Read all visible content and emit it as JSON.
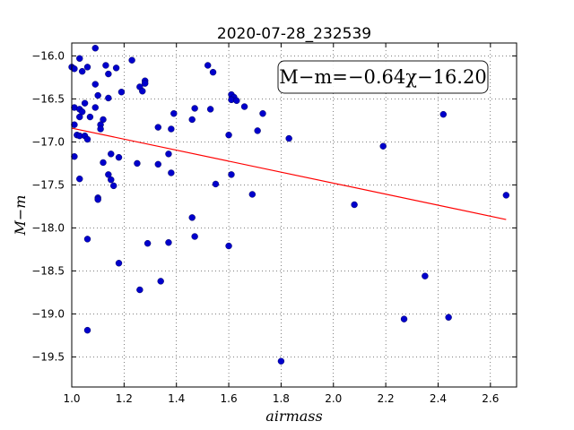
{
  "chart_data": {
    "type": "scatter",
    "title": "2020-07-28_232539",
    "xlabel": "airmass",
    "ylabel": "M−m",
    "xlim": [
      1.0,
      2.7
    ],
    "ylim": [
      -15.85,
      -19.85
    ],
    "y_inverted": true,
    "grid": true,
    "grid_style": "dotted",
    "xticks": [
      1.0,
      1.2,
      1.4,
      1.6,
      1.8,
      2.0,
      2.2,
      2.4,
      2.6
    ],
    "xtick_labels": [
      "1.0",
      "1.2",
      "1.4",
      "1.6",
      "1.8",
      "2.0",
      "2.2",
      "2.4",
      "2.6"
    ],
    "yticks": [
      -16.0,
      -16.5,
      -17.0,
      -17.5,
      -18.0,
      -18.5,
      -19.0,
      -19.5
    ],
    "ytick_labels": [
      "−16.0",
      "−16.5",
      "−17.0",
      "−17.5",
      "−18.0",
      "−18.5",
      "−19.0",
      "−19.5"
    ],
    "annotation": "M−m=−0.64χ−16.20",
    "annotation_placement": "top-right",
    "fit": {
      "slope": -0.64,
      "intercept": -16.2,
      "x_range": [
        1.0,
        2.66
      ],
      "color": "#ff0000"
    },
    "point_color": "#0000cc",
    "points": [
      {
        "x": 1.0,
        "y": -16.13
      },
      {
        "x": 1.01,
        "y": -16.15
      },
      {
        "x": 1.03,
        "y": -16.03
      },
      {
        "x": 1.04,
        "y": -16.18
      },
      {
        "x": 1.06,
        "y": -16.13
      },
      {
        "x": 1.09,
        "y": -15.91
      },
      {
        "x": 1.13,
        "y": -16.11
      },
      {
        "x": 1.14,
        "y": -16.21
      },
      {
        "x": 1.17,
        "y": -16.14
      },
      {
        "x": 1.23,
        "y": -16.05
      },
      {
        "x": 1.28,
        "y": -16.29
      },
      {
        "x": 1.28,
        "y": -16.32
      },
      {
        "x": 1.26,
        "y": -16.36
      },
      {
        "x": 1.27,
        "y": -16.41
      },
      {
        "x": 1.19,
        "y": -16.42
      },
      {
        "x": 1.1,
        "y": -16.46
      },
      {
        "x": 1.14,
        "y": -16.49
      },
      {
        "x": 1.05,
        "y": -16.55
      },
      {
        "x": 1.09,
        "y": -16.33
      },
      {
        "x": 1.01,
        "y": -16.6
      },
      {
        "x": 1.03,
        "y": -16.62
      },
      {
        "x": 1.04,
        "y": -16.65
      },
      {
        "x": 1.03,
        "y": -16.71
      },
      {
        "x": 1.07,
        "y": -16.71
      },
      {
        "x": 1.09,
        "y": -16.6
      },
      {
        "x": 1.12,
        "y": -16.74
      },
      {
        "x": 1.11,
        "y": -16.8
      },
      {
        "x": 1.11,
        "y": -16.85
      },
      {
        "x": 1.01,
        "y": -16.8
      },
      {
        "x": 1.02,
        "y": -16.92
      },
      {
        "x": 1.03,
        "y": -16.93
      },
      {
        "x": 1.05,
        "y": -16.93
      },
      {
        "x": 1.06,
        "y": -16.97
      },
      {
        "x": 1.01,
        "y": -17.17
      },
      {
        "x": 1.12,
        "y": -17.24
      },
      {
        "x": 1.15,
        "y": -17.14
      },
      {
        "x": 1.18,
        "y": -17.18
      },
      {
        "x": 1.03,
        "y": -17.43
      },
      {
        "x": 1.14,
        "y": -17.38
      },
      {
        "x": 1.15,
        "y": -17.44
      },
      {
        "x": 1.16,
        "y": -17.51
      },
      {
        "x": 1.1,
        "y": -17.65
      },
      {
        "x": 1.1,
        "y": -17.67
      },
      {
        "x": 1.06,
        "y": -18.13
      },
      {
        "x": 1.18,
        "y": -18.41
      },
      {
        "x": 1.06,
        "y": -19.19
      },
      {
        "x": 1.25,
        "y": -17.25
      },
      {
        "x": 1.33,
        "y": -17.26
      },
      {
        "x": 1.37,
        "y": -17.14
      },
      {
        "x": 1.38,
        "y": -17.36
      },
      {
        "x": 1.33,
        "y": -16.83
      },
      {
        "x": 1.38,
        "y": -16.85
      },
      {
        "x": 1.39,
        "y": -16.67
      },
      {
        "x": 1.46,
        "y": -16.74
      },
      {
        "x": 1.47,
        "y": -16.61
      },
      {
        "x": 1.52,
        "y": -16.11
      },
      {
        "x": 1.54,
        "y": -16.19
      },
      {
        "x": 1.53,
        "y": -16.62
      },
      {
        "x": 1.55,
        "y": -17.49
      },
      {
        "x": 1.29,
        "y": -18.18
      },
      {
        "x": 1.37,
        "y": -18.17
      },
      {
        "x": 1.46,
        "y": -17.88
      },
      {
        "x": 1.47,
        "y": -18.1
      },
      {
        "x": 1.26,
        "y": -18.72
      },
      {
        "x": 1.34,
        "y": -18.62
      },
      {
        "x": 1.6,
        "y": -16.92
      },
      {
        "x": 1.61,
        "y": -16.45
      },
      {
        "x": 1.62,
        "y": -16.48
      },
      {
        "x": 1.61,
        "y": -16.51
      },
      {
        "x": 1.63,
        "y": -16.52
      },
      {
        "x": 1.66,
        "y": -16.59
      },
      {
        "x": 1.71,
        "y": -16.87
      },
      {
        "x": 1.73,
        "y": -16.67
      },
      {
        "x": 1.83,
        "y": -16.96
      },
      {
        "x": 1.61,
        "y": -17.38
      },
      {
        "x": 1.69,
        "y": -17.61
      },
      {
        "x": 1.6,
        "y": -18.21
      },
      {
        "x": 1.8,
        "y": -19.55
      },
      {
        "x": 2.08,
        "y": -17.73
      },
      {
        "x": 2.19,
        "y": -17.05
      },
      {
        "x": 2.27,
        "y": -19.06
      },
      {
        "x": 2.35,
        "y": -18.56
      },
      {
        "x": 2.42,
        "y": -16.68
      },
      {
        "x": 2.44,
        "y": -19.04
      },
      {
        "x": 2.66,
        "y": -17.62
      }
    ]
  }
}
